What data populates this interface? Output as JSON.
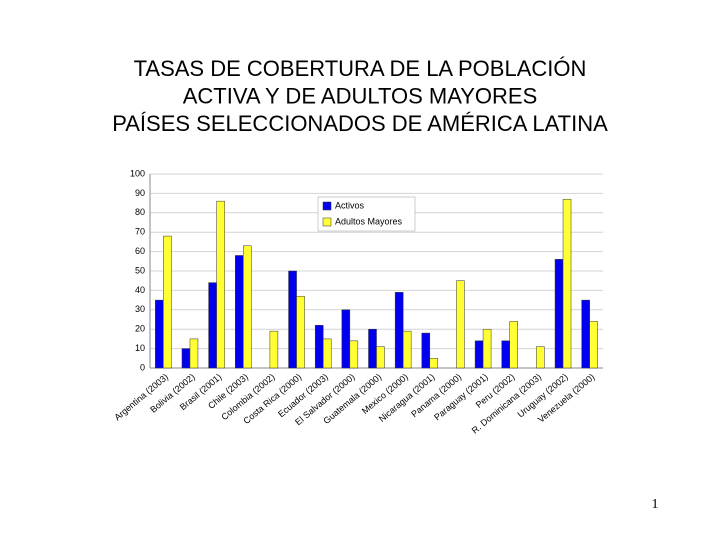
{
  "chart_data": {
    "type": "bar",
    "title": [
      "TASAS DE COBERTURA DE LA POBLACIÓN",
      "ACTIVA Y DE ADULTOS MAYORES",
      "PAÍSES SELECCIONADOS DE AMÉRICA LATINA"
    ],
    "categories": [
      "Argentina (2003)",
      "Bolivia (2002)",
      "Brasil (2001)",
      "Chile (2003)",
      "Colombia (2002)",
      "Costa Rica (2000)",
      "Ecuador (2003)",
      "El Salvador (2000)",
      "Guatemala (2000)",
      "Mexico (2000)",
      "Nicaragua (2001)",
      "Panama (2000)",
      "Paraguay (2001)",
      "Peru (2002)",
      "R. Dominicana (2003)",
      "Uruguay (2002)",
      "Venezuela (2000)"
    ],
    "series": [
      {
        "name": "Activos",
        "color": "#0000ee",
        "values": [
          35,
          10,
          44,
          58,
          null,
          50,
          22,
          30,
          20,
          39,
          18,
          null,
          14,
          14,
          null,
          56,
          35
        ]
      },
      {
        "name": "Adultos Mayores",
        "color": "#ffff33",
        "values": [
          68,
          15,
          86,
          63,
          19,
          37,
          15,
          14,
          11,
          19,
          5,
          45,
          20,
          24,
          11,
          87,
          24
        ]
      }
    ],
    "ylim": [
      0,
      100
    ],
    "yticks": [
      0,
      10,
      20,
      30,
      40,
      50,
      60,
      70,
      80,
      90,
      100
    ],
    "grid": true,
    "legend": "top"
  },
  "page_number": "1"
}
